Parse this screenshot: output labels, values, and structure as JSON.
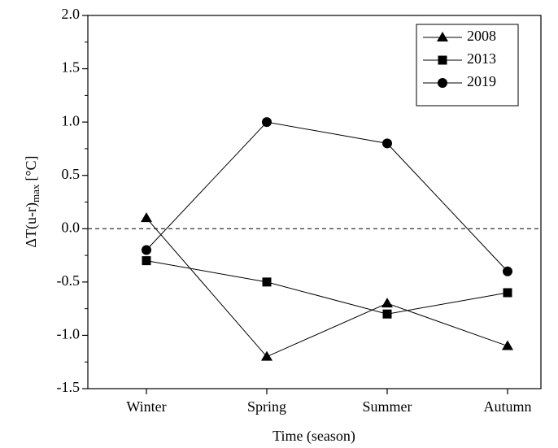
{
  "chart_data": {
    "type": "line",
    "xlabel": "Time (season)",
    "ylabel": {
      "main": "ΔT(u-r)",
      "sub": "max",
      "unit": "[°C]"
    },
    "categories": [
      "Winter",
      "Spring",
      "Summer",
      "Autumn"
    ],
    "series": [
      {
        "name": "2008",
        "color": "#000000",
        "marker": "triangle",
        "values": [
          0.1,
          -1.2,
          -0.7,
          -1.1
        ]
      },
      {
        "name": "2013",
        "color": "#000000",
        "marker": "square",
        "values": [
          -0.3,
          -0.5,
          -0.8,
          -0.6
        ]
      },
      {
        "name": "2019",
        "color": "#000000",
        "marker": "circle",
        "values": [
          -0.2,
          1.0,
          0.8,
          -0.4
        ]
      }
    ],
    "ylim": [
      -1.5,
      2.0
    ],
    "yticks": [
      {
        "value": -1.5,
        "label": "-1.5"
      },
      {
        "value": -1,
        "label": "-1.0"
      },
      -0.5,
      {
        "value": 0,
        "label": "0.0"
      },
      0.5,
      {
        "value": 1,
        "label": "1.0"
      },
      1.5,
      {
        "value": 2,
        "label": "2.0"
      }
    ],
    "reference_line": {
      "value": 0,
      "style": "dashed"
    },
    "legend": "upper right",
    "grid": false
  }
}
